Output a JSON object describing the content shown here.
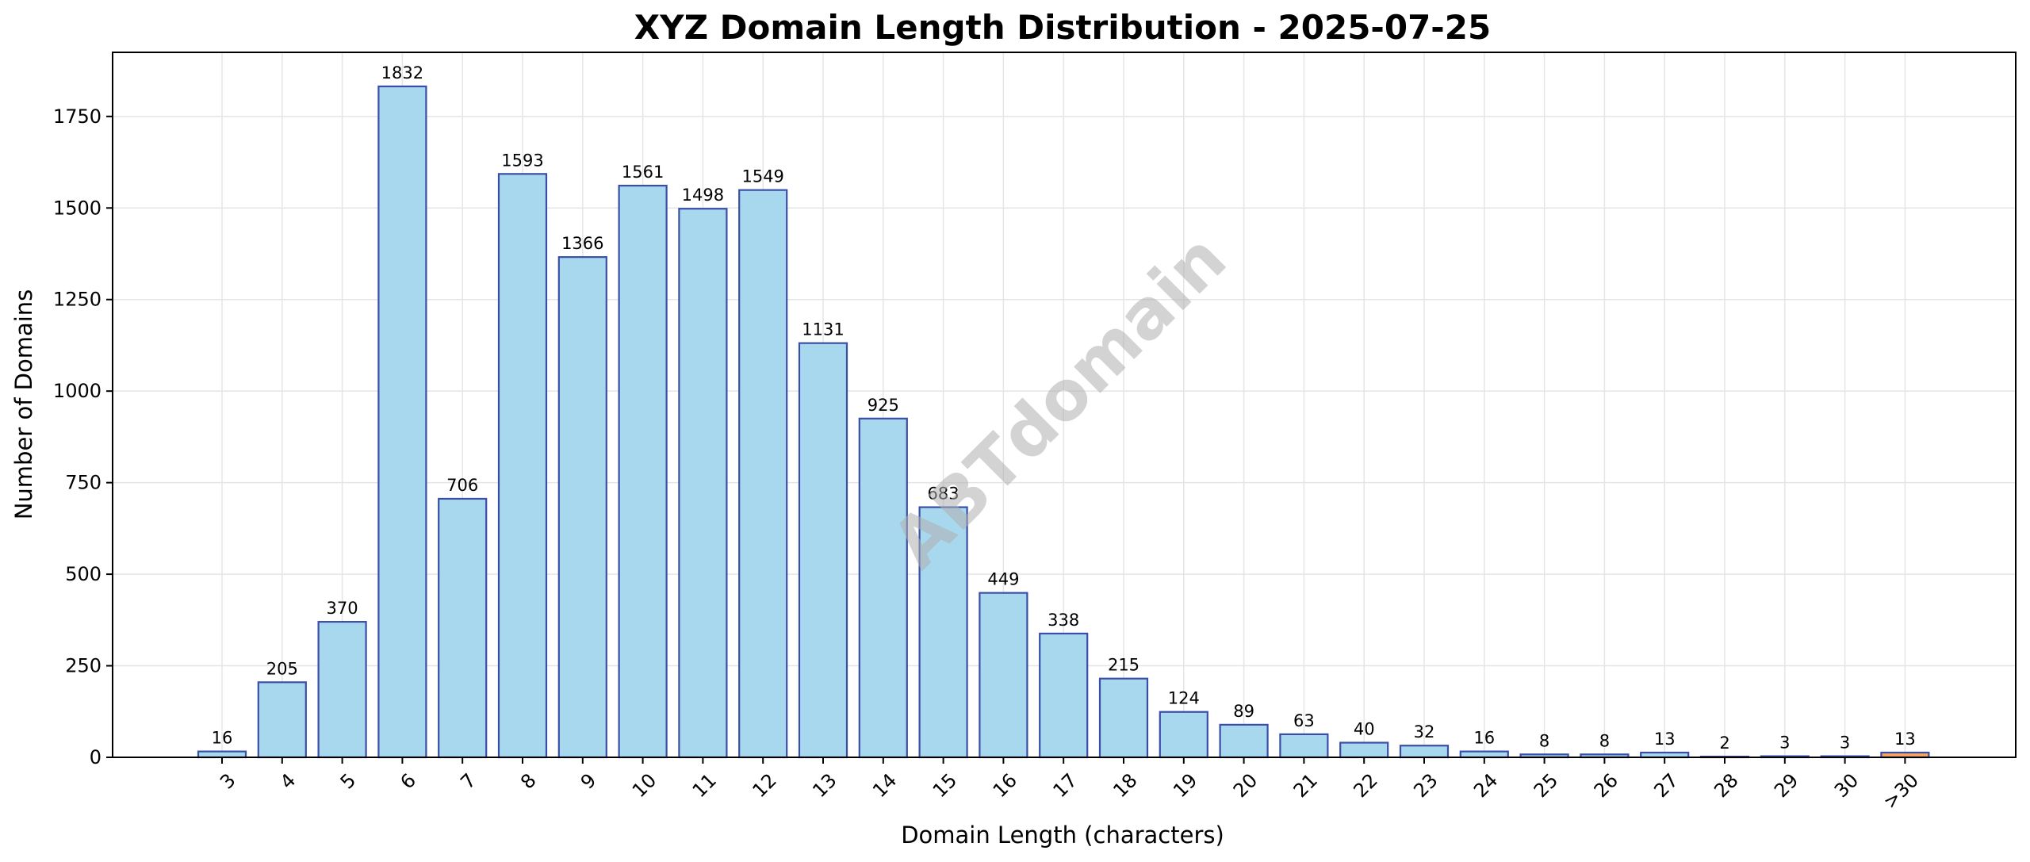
{
  "chart_data": {
    "type": "bar",
    "title": "XYZ Domain Length Distribution - 2025-07-25",
    "xlabel": "Domain Length (characters)",
    "ylabel": "Number of Domains",
    "ylim": [
      0,
      1925
    ],
    "yticks": [
      0,
      250,
      500,
      750,
      1000,
      1250,
      1500,
      1750
    ],
    "grid": true,
    "categories": [
      "3",
      "4",
      "5",
      "6",
      "7",
      "8",
      "9",
      "10",
      "11",
      "12",
      "13",
      "14",
      "15",
      "16",
      "17",
      "18",
      "19",
      "20",
      "21",
      "22",
      "23",
      "24",
      "25",
      "26",
      "27",
      "28",
      "29",
      "30",
      ">30"
    ],
    "values": [
      16,
      205,
      370,
      1832,
      706,
      1593,
      1366,
      1561,
      1498,
      1549,
      1131,
      925,
      683,
      449,
      338,
      215,
      124,
      89,
      63,
      40,
      32,
      16,
      8,
      8,
      13,
      2,
      3,
      3,
      13
    ],
    "bar_color": "#a8d8ed",
    "bar_edge_color": "#3a4ea8",
    "highlight_category": ">30",
    "highlight_color": "#f5a462",
    "watermark": "ABTdomain"
  }
}
